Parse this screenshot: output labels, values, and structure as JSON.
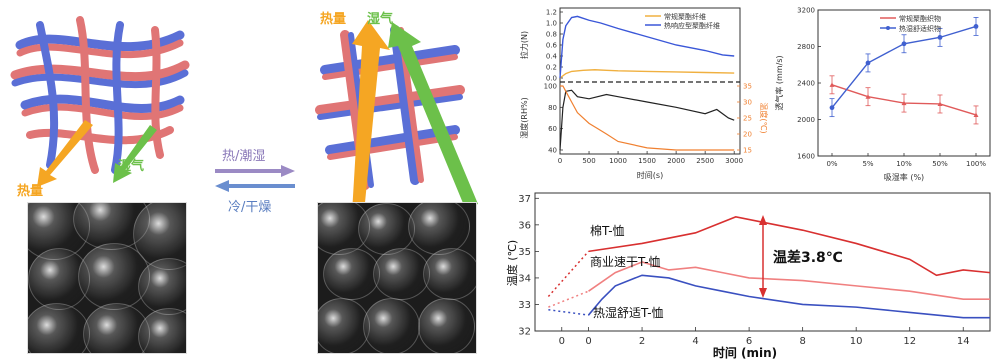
{
  "schematic": {
    "left_heat": "热量",
    "left_moisture": "湿气",
    "right_heat": "热量",
    "right_moisture": "湿气",
    "forward_label": "热/潮湿",
    "backward_label": "冷/干燥",
    "colors": {
      "heat": "#f5a623",
      "moisture": "#6cc04a",
      "fiber_red": "#e07575",
      "fiber_blue": "#5a6fd6",
      "arrow_forward": "#9b8ac4",
      "arrow_backward": "#6a8ecf"
    }
  },
  "chart_force": {
    "legend": [
      "常规聚酯纤维",
      "热响应型聚酯纤维"
    ],
    "ylabel_top": "拉力(N)",
    "ylabel_bottom_left": "湿度(RH%)",
    "ylabel_bottom_right": "温度(℃)",
    "xlabel": "时间(s)",
    "top_yticks": [
      "1.2",
      "1.0",
      "0.8",
      "0.6",
      "0.4",
      "0.2",
      "0.0"
    ],
    "bottom_yticks_left": [
      "100",
      "80",
      "60",
      "40"
    ],
    "bottom_yticks_right": [
      "35",
      "30",
      "25",
      "20",
      "15"
    ],
    "xticks": [
      "0",
      "500",
      "1000",
      "1500",
      "2000",
      "2500",
      "3000"
    ]
  },
  "chart_air": {
    "legend": [
      "常规聚酯织物",
      "热湿舒适织物"
    ],
    "ylabel": "透气率 (mm/s)",
    "xlabel": "吸湿率 (%)",
    "yticks": [
      "3200",
      "2800",
      "2400",
      "2000",
      "1600"
    ],
    "xticks": [
      "0%",
      "5%",
      "10%",
      "50%",
      "100%"
    ]
  },
  "chart_temp": {
    "ylabel": "温度 (℃)",
    "xlabel": "时间 (min)",
    "yticks": [
      "37",
      "36",
      "35",
      "34",
      "33",
      "32"
    ],
    "xticks": [
      "0",
      "0",
      "2",
      "4",
      "6",
      "8",
      "10",
      "12",
      "14"
    ],
    "label_cotton": "棉T-恤",
    "label_commercial": "商业速干T-恤",
    "label_comfort": "热湿舒适T-恤",
    "label_diff": "温差3.8℃"
  },
  "chart_data": [
    {
      "type": "line",
      "title": "",
      "xlabel": "时间(s)",
      "ylabel": "拉力(N)",
      "xlim": [
        0,
        3100
      ],
      "ylim": [
        0,
        1.2
      ],
      "series": [
        {
          "name": "常规聚酯纤维",
          "color": "#f0b040",
          "x": [
            0,
            100,
            200,
            400,
            600,
            800,
            1000,
            1500,
            2000,
            2500,
            3000
          ],
          "y": [
            0.0,
            0.08,
            0.12,
            0.14,
            0.15,
            0.14,
            0.13,
            0.12,
            0.11,
            0.1,
            0.09
          ]
        },
        {
          "name": "热响应型聚酯纤维",
          "color": "#3a57d8",
          "x": [
            0,
            50,
            100,
            200,
            300,
            500,
            700,
            1000,
            1500,
            2000,
            2500,
            2800,
            3000
          ],
          "y": [
            0.0,
            0.7,
            0.95,
            1.1,
            1.12,
            1.05,
            1.0,
            0.9,
            0.75,
            0.6,
            0.5,
            0.42,
            0.4
          ]
        }
      ]
    },
    {
      "type": "line",
      "title": "",
      "xlabel": "时间(s)",
      "ylabel": "湿度(RH%)",
      "xlim": [
        0,
        3100
      ],
      "ylim": [
        40,
        100
      ],
      "series": [
        {
          "name": "湿度",
          "color": "#222222",
          "x": [
            0,
            50,
            100,
            200,
            300,
            500,
            800,
            1000,
            1500,
            2000,
            2500,
            2700,
            2900,
            3000
          ],
          "y": [
            40,
            80,
            95,
            96,
            90,
            88,
            92,
            90,
            85,
            80,
            74,
            78,
            70,
            68
          ]
        },
        {
          "name": "温度",
          "color": "#f08030",
          "x": [
            0,
            50,
            100,
            200,
            300,
            500,
            800,
            1000,
            1500,
            2000,
            2500,
            3000
          ],
          "y": [
            100,
            100,
            95,
            85,
            75,
            65,
            55,
            48,
            42,
            40,
            40,
            40
          ]
        }
      ]
    },
    {
      "type": "line",
      "title": "",
      "xlabel": "吸湿率 (%)",
      "ylabel": "透气率 (mm/s)",
      "categories": [
        "0%",
        "5%",
        "10%",
        "50%",
        "100%"
      ],
      "ylim": [
        1600,
        3200
      ],
      "series": [
        {
          "name": "常规聚酯织物",
          "color": "#e05a5a",
          "values": [
            2380,
            2250,
            2180,
            2170,
            2050
          ]
        },
        {
          "name": "热湿舒适织物",
          "color": "#4060d0",
          "values": [
            2130,
            2620,
            2830,
            2900,
            3020
          ]
        }
      ]
    },
    {
      "type": "line",
      "title": "",
      "xlabel": "时间 (min)",
      "ylabel": "温度 (℃)",
      "xlim": [
        -2,
        15
      ],
      "ylim": [
        32,
        37
      ],
      "series": [
        {
          "name": "棉T-恤",
          "color": "#d83030",
          "x": [
            0,
            2,
            4,
            5.5,
            6.5,
            8,
            10,
            12,
            13,
            14,
            15
          ],
          "y": [
            35.0,
            35.3,
            35.7,
            36.3,
            36.1,
            35.8,
            35.3,
            34.7,
            34.1,
            34.3,
            34.2
          ]
        },
        {
          "name": "商业速干T-恤",
          "color": "#f08080",
          "x": [
            0,
            1,
            2,
            3,
            4,
            5,
            6,
            8,
            10,
            12,
            14,
            15
          ],
          "y": [
            33.5,
            34.2,
            34.6,
            34.3,
            34.4,
            34.2,
            34.0,
            33.9,
            33.7,
            33.5,
            33.2,
            33.2
          ]
        },
        {
          "name": "热湿舒适T-恤",
          "color": "#3a50c0",
          "x": [
            0,
            0.5,
            1,
            2,
            3,
            4,
            5,
            6,
            8,
            10,
            12,
            14,
            15
          ],
          "y": [
            32.6,
            33.2,
            33.7,
            34.1,
            34.0,
            33.7,
            33.5,
            33.3,
            33.0,
            32.9,
            32.7,
            32.5,
            32.5
          ]
        }
      ]
    }
  ]
}
